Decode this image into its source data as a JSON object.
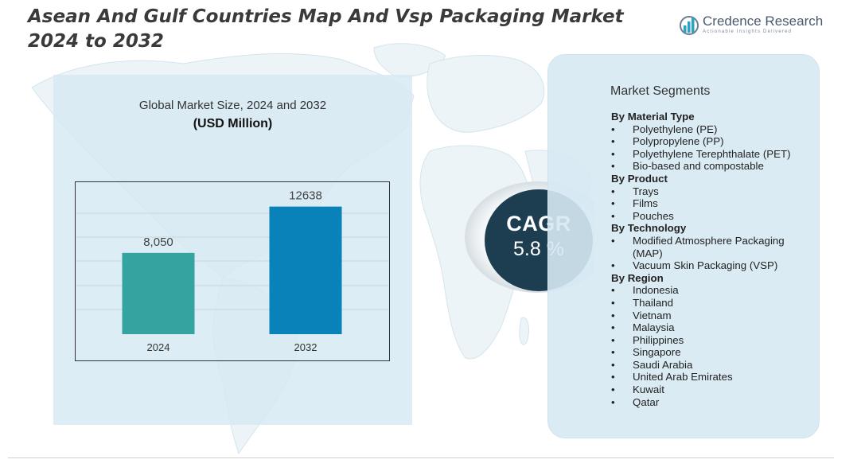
{
  "title": "Asean And Gulf Countries Map And Vsp Packaging Market 2024 to 2032",
  "logo": {
    "name": "Credence Research",
    "tagline": "Actionable Insights Delivered",
    "icon": "bar-chart-logo-icon"
  },
  "colors": {
    "bar_2024": "#35a39f",
    "bar_2032": "#0882b8",
    "cagr_circle": "#1d3e51",
    "panel": "#d6e9f3"
  },
  "chart_data": {
    "type": "bar",
    "title": "Global Market Size, 2024 and 2032",
    "subtitle": "(USD Million)",
    "categories": [
      "2024",
      "2032"
    ],
    "values": [
      8050,
      12638
    ],
    "value_labels": [
      "8,050",
      "12638"
    ],
    "ylim": [
      0,
      14500
    ],
    "grid": true,
    "bar_colors": [
      "#35a39f",
      "#0882b8"
    ]
  },
  "cagr": {
    "label": "CAGR",
    "value": "5.8 %"
  },
  "segments": {
    "title": "Market Segments",
    "bullet": "•",
    "groups": [
      {
        "heading": "By Material Type",
        "items": [
          "Polyethylene (PE)",
          "Polypropylene (PP)",
          "Polyethylene Terephthalate (PET)",
          "Bio-based and compostable"
        ]
      },
      {
        "heading": "By Product",
        "items": [
          "Trays",
          "Films",
          "Pouches"
        ]
      },
      {
        "heading": "By Technology",
        "items": [
          "Modified Atmosphere Packaging (MAP)",
          "Vacuum Skin Packaging (VSP)"
        ]
      },
      {
        "heading": "By Region",
        "items": [
          "Indonesia",
          "Thailand",
          "Vietnam",
          "Malaysia",
          "Philippines",
          "Singapore",
          "Saudi Arabia",
          "United Arab Emirates",
          "Kuwait",
          "Qatar"
        ]
      }
    ]
  }
}
